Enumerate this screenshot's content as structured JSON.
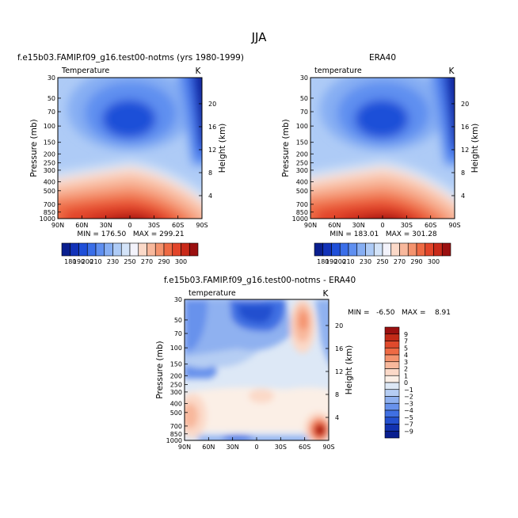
{
  "main_title": "JJA",
  "panels": [
    {
      "id": "model",
      "header": "f.e15b03.FAMIP.f09_g16.test00-notms (yrs 1980-1999)",
      "variable": "Temperature",
      "units": "K",
      "min_max": "MIN = 176.50   MAX = 299.21"
    },
    {
      "id": "obs",
      "header": "ERA40",
      "variable": "temperature",
      "units": "K",
      "min_max": "MIN = 183.01   MAX = 301.28"
    },
    {
      "id": "diff",
      "header": "f.e15b03.FAMIP.f09_g16.test00-notms - ERA40",
      "variable": "temperature",
      "units": "K",
      "min_max": "MIN =   -6.50   MAX =    8.91"
    }
  ],
  "axes": {
    "ylabel_left": "Pressure (mb)",
    "ylabel_right": "Height (km)",
    "pressure_ticks": [
      "30",
      "50",
      "70",
      "100",
      "150",
      "200",
      "250",
      "300",
      "400",
      "500",
      "700",
      "850",
      "1000"
    ],
    "height_ticks": [
      "20",
      "16",
      "12",
      "8",
      "4"
    ],
    "lat_ticks": [
      "90N",
      "60N",
      "30N",
      "0",
      "30S",
      "60S",
      "90S"
    ]
  },
  "temp_colorbar": {
    "labels": [
      "180",
      "190",
      "200",
      "210",
      "230",
      "250",
      "270",
      "290",
      "300"
    ],
    "colors": [
      "#0a1f8f",
      "#1232b8",
      "#1f4fd8",
      "#3a6ee8",
      "#5f8ff0",
      "#86aef3",
      "#aecbf6",
      "#d3e3f8",
      "#f3f3fb",
      "#fbd9c8",
      "#f8b89c",
      "#f4936e",
      "#ee6a44",
      "#e2452a",
      "#c92a1a",
      "#9b1010"
    ]
  },
  "diff_colorbar": {
    "labels": [
      "9",
      "7",
      "5",
      "4",
      "3",
      "2",
      "1",
      "0",
      "−1",
      "−2",
      "−3",
      "−4",
      "−5",
      "−7",
      "−9"
    ],
    "colors": [
      "#9b1010",
      "#c22a18",
      "#e04a2c",
      "#ee6a44",
      "#f4936e",
      "#f8b89c",
      "#fbd9c8",
      "#fbefe6",
      "#dde8f6",
      "#b5cdf3",
      "#8fb1f0",
      "#6892ec",
      "#4070e2",
      "#2450cf",
      "#1232b0",
      "#0a1f8f"
    ]
  },
  "chart_data": [
    {
      "type": "heatmap",
      "title": "f.e15b03.FAMIP.f09_g16.test00-notms (yrs 1980-1999)",
      "subtitle": "Temperature",
      "units": "K",
      "xlabel": "",
      "ylabel": "Pressure (mb)",
      "y2label": "Height (km)",
      "x": [
        "90N",
        "60N",
        "30N",
        "0",
        "30S",
        "60S",
        "90S"
      ],
      "y": [
        30,
        50,
        70,
        100,
        150,
        200,
        250,
        300,
        400,
        500,
        700,
        850,
        1000
      ],
      "min": 176.5,
      "max": 299.21
    },
    {
      "type": "heatmap",
      "title": "ERA40",
      "subtitle": "temperature",
      "units": "K",
      "xlabel": "",
      "ylabel": "Pressure (mb)",
      "y2label": "Height (km)",
      "x": [
        "90N",
        "60N",
        "30N",
        "0",
        "30S",
        "60S",
        "90S"
      ],
      "y": [
        30,
        50,
        70,
        100,
        150,
        200,
        250,
        300,
        400,
        500,
        700,
        850,
        1000
      ],
      "min": 183.01,
      "max": 301.28
    },
    {
      "type": "heatmap",
      "title": "f.e15b03.FAMIP.f09_g16.test00-notms - ERA40",
      "subtitle": "temperature",
      "units": "K",
      "xlabel": "",
      "ylabel": "Pressure (mb)",
      "y2label": "Height (km)",
      "x": [
        "90N",
        "60N",
        "30N",
        "0",
        "30S",
        "60S",
        "90S"
      ],
      "y": [
        30,
        50,
        70,
        100,
        150,
        200,
        250,
        300,
        400,
        500,
        700,
        850,
        1000
      ],
      "min": -6.5,
      "max": 8.91
    }
  ]
}
